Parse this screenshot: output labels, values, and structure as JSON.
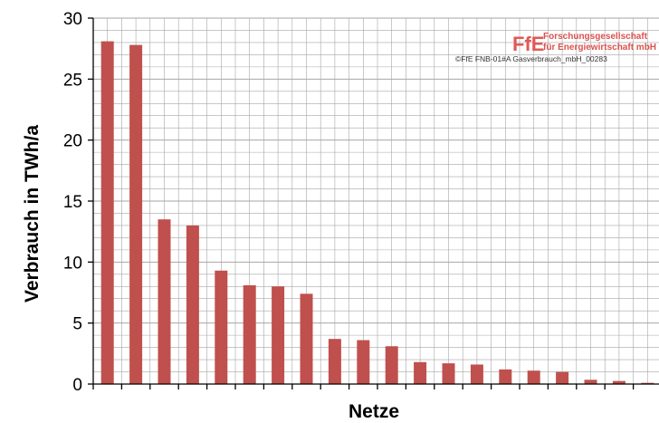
{
  "chart_data": {
    "type": "bar",
    "xlabel": "Netze",
    "ylabel": "Verbrauch in TWh/a",
    "ylim": [
      0,
      30
    ],
    "yticks": [
      0,
      5,
      10,
      15,
      20,
      25,
      30
    ],
    "grid": true,
    "series": [
      {
        "color": "#c0504d",
        "values": [
          28.1,
          27.8,
          13.5,
          13.0,
          9.3,
          8.1,
          8.0,
          7.4,
          3.7,
          3.6,
          3.1,
          1.8,
          1.7,
          1.6,
          1.2,
          1.1,
          1.0,
          0.35,
          0.25,
          0.1
        ]
      }
    ]
  },
  "watermark": {
    "logo_mark": "FfE",
    "logo_line1": "Forschungsgesellschaft",
    "logo_line2": "für Energiewirtschaft mbH",
    "caption": "©FfE FNB-01#A Gasverbrauch_mbH_00283"
  },
  "colors": {
    "bar": "#c0504d",
    "grid": "#a6a6a6",
    "axis": "#000000",
    "logo": "#e05a55"
  }
}
